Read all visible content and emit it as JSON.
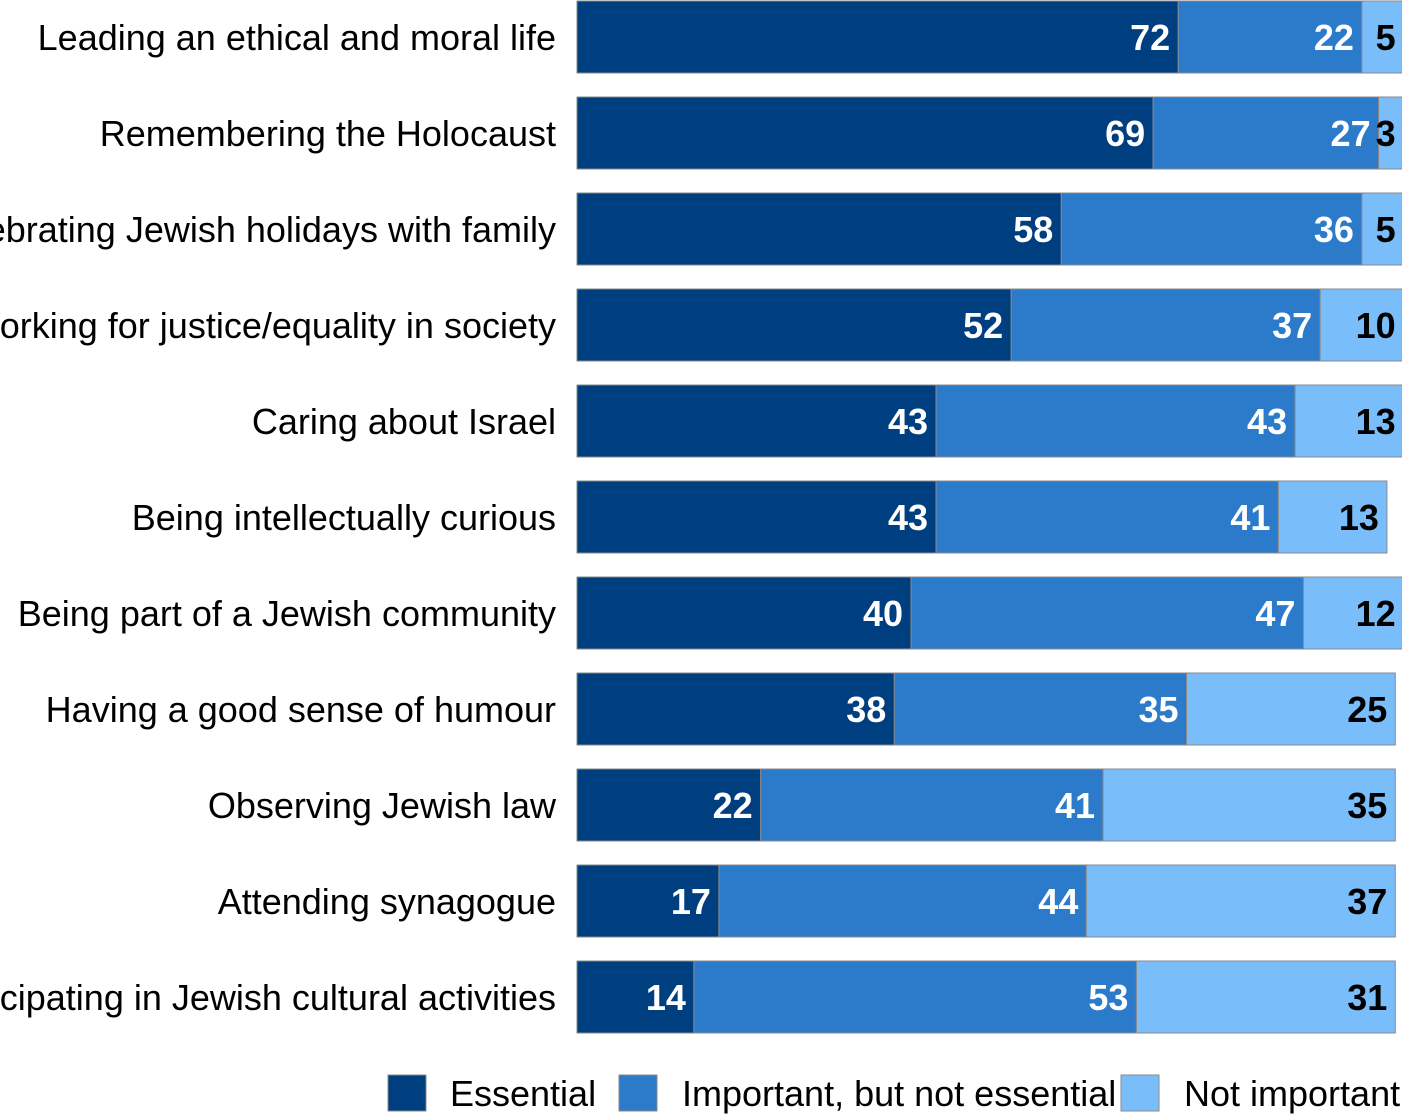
{
  "chart_data": {
    "type": "bar",
    "orientation": "horizontal",
    "stacked": true,
    "title": "",
    "xlabel": "",
    "ylabel": "",
    "xlim": [
      0,
      100
    ],
    "grid": false,
    "legend_position": "bottom-right",
    "categories": [
      "Leading an ethical and moral life",
      "Remembering the Holocaust",
      "Celebrating Jewish holidays with family",
      "Working for justice/equality in society",
      "Caring about Israel",
      "Being intellectually curious",
      "Being part of a Jewish community",
      "Having a good sense of humour",
      "Observing Jewish law",
      "Attending synagogue",
      "Participating in Jewish cultural activities"
    ],
    "series": [
      {
        "name": "Essential",
        "color": "#003F7F",
        "label_color": "#ffffff",
        "values": [
          72,
          69,
          58,
          52,
          43,
          43,
          40,
          38,
          22,
          17,
          14
        ]
      },
      {
        "name": "Important, but not essential",
        "color": "#2C7BCB",
        "label_color": "#ffffff",
        "values": [
          22,
          27,
          36,
          37,
          43,
          41,
          47,
          35,
          41,
          44,
          53
        ]
      },
      {
        "name": "Not important",
        "color": "#7ABDFB",
        "label_color": "#000000",
        "values": [
          5,
          3,
          5,
          10,
          13,
          13,
          12,
          25,
          35,
          37,
          31
        ]
      }
    ]
  }
}
